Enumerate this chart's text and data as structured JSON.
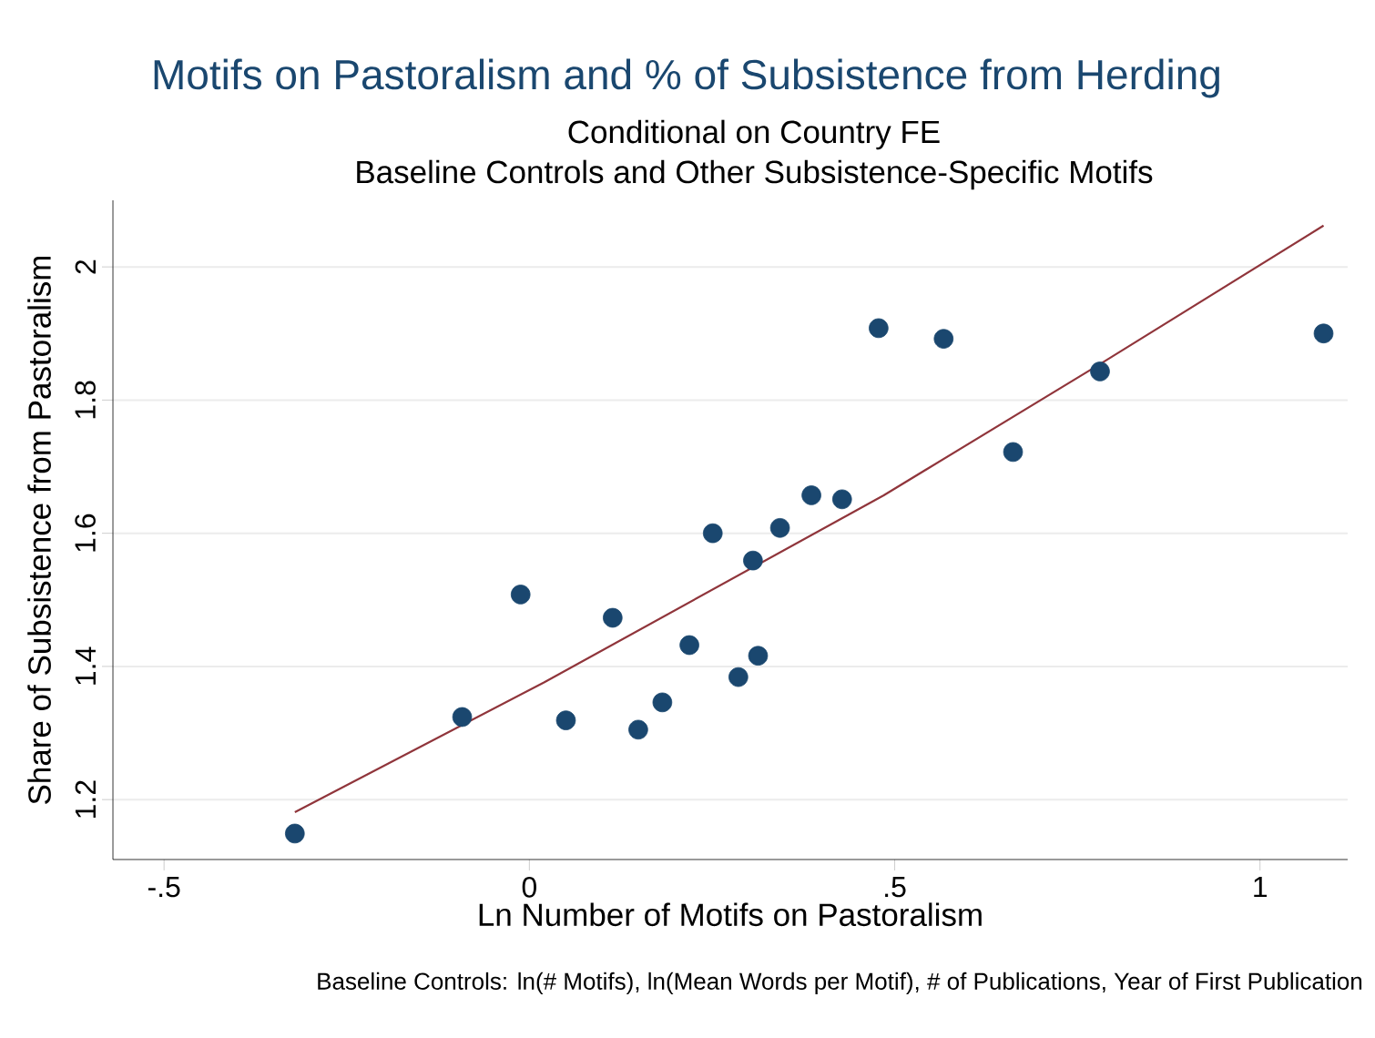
{
  "chart_data": {
    "type": "scatter",
    "title": "Motifs on Pastoralism and % of Subsistence from Herding",
    "subtitle": "Conditional on Country FE",
    "xlabel": "Ln Number of Motifs on Pastoralism",
    "ylabel": "Share of Subsistence from Pastoralism",
    "annotations": [
      "Baseline Controls and Other Subsistence-Specific Motifs",
      "Baseline Controls: ln(# Motifs), ln(Mean Words per Motif), # of Publications, Year of First Publication"
    ],
    "xlim": [
      -0.57,
      1.12
    ],
    "ylim": [
      1.11,
      2.1
    ],
    "xticks": [
      {
        "value": -0.5,
        "label": "-.5"
      },
      0,
      {
        "value": 0.5,
        "label": ".5"
      },
      1
    ],
    "yticks": [
      1.2,
      1.4,
      1.6,
      1.8,
      2
    ],
    "grid": "y",
    "series": [
      {
        "marker": "circle",
        "color": "#1a476f",
        "x": [
          -0.321,
          -0.092,
          -0.012,
          0.05,
          0.114,
          0.149,
          0.182,
          0.219,
          0.251,
          0.306,
          0.286,
          0.313,
          0.343,
          0.386,
          0.428,
          0.478,
          0.567,
          0.662,
          0.781,
          1.087
        ],
        "values": [
          1.149,
          1.324,
          1.508,
          1.319,
          1.473,
          1.305,
          1.346,
          1.432,
          1.6,
          1.559,
          1.384,
          1.416,
          1.608,
          1.657,
          1.651,
          1.908,
          1.892,
          1.722,
          1.843,
          1.9
        ]
      },
      {
        "type": "line",
        "marker": "none",
        "color": "#90353b",
        "x": [
          -0.321,
          0.02,
          0.485,
          0.781,
          1.087
        ],
        "values": [
          1.181,
          1.376,
          1.657,
          1.854,
          2.062
        ]
      }
    ]
  }
}
